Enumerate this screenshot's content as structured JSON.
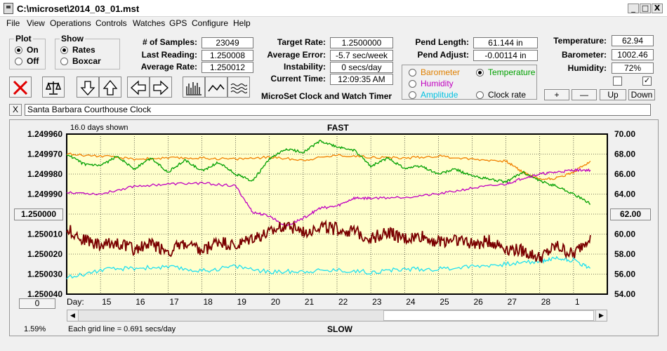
{
  "window": {
    "title": "C:\\microset\\2014_03_01.mst",
    "min": "_",
    "max": "□",
    "close": "X"
  },
  "menu": [
    "File",
    "View",
    "Operations",
    "Controls",
    "Watches",
    "GPS",
    "Configure",
    "Help"
  ],
  "plot_group": {
    "title": "Plot",
    "options": [
      "On",
      "Off"
    ],
    "selected": 0
  },
  "show_group": {
    "title": "Show",
    "options": [
      "Rates",
      "Boxcar"
    ],
    "selected": 0
  },
  "stats": [
    {
      "label": "# of Samples:",
      "value": "23049"
    },
    {
      "label": "Last Reading:",
      "value": "1.250008"
    },
    {
      "label": "Average Rate:",
      "value": "1.250012"
    }
  ],
  "rates": [
    {
      "label": "Target Rate:",
      "value": "1.2500000"
    },
    {
      "label": "Average Error:",
      "value": "-5.7 sec/week"
    },
    {
      "label": "Instability:",
      "value": "0 secs/day"
    },
    {
      "label": "Current Time:",
      "value": "12:09:35 AM"
    }
  ],
  "app_caption": "MicroSet Clock and Watch Timer",
  "pendulum": [
    {
      "label": "Pend Length:",
      "value": "61.144 in"
    },
    {
      "label": "Pend Adjust:",
      "value": "-0.00114 in"
    }
  ],
  "env": [
    {
      "label": "Temperature:",
      "value": "62.94"
    },
    {
      "label": "Barometer:",
      "value": "1002.46"
    },
    {
      "label": "Humidity:",
      "value": "72%"
    }
  ],
  "aux_options": [
    {
      "label": "Barometer",
      "color": "#e08000",
      "selected": false
    },
    {
      "label": "Temperature",
      "color": "#00a000",
      "selected": true
    },
    {
      "label": "Humidity",
      "color": "#c000c0",
      "selected": false
    },
    {
      "label": "Amplitude",
      "color": "#00c0e0",
      "selected": false
    },
    {
      "label": "Clock rate",
      "color": "#000000",
      "selected": false
    }
  ],
  "aux_buttons": [
    "+",
    "—",
    "Up",
    "Down"
  ],
  "checkboxes": [
    false,
    true
  ],
  "clock_name": "Santa Barbara Courthouse Clock",
  "clear_button": "X",
  "plot": {
    "days_shown": "16.0 days shown",
    "top_label": "FAST",
    "bottom_label": "SLOW",
    "grid_note": "Each grid line = 0.691 secs/day",
    "percent": "1.59%",
    "day_prefix": "Day:",
    "left_center_button": "1.250000",
    "right_center_button": "62.00",
    "bottom_left_button": "0"
  },
  "chart_data": {
    "type": "line",
    "x_tick_labels": [
      "15",
      "16",
      "17",
      "18",
      "19",
      "20",
      "21",
      "22",
      "23",
      "24",
      "25",
      "26",
      "27",
      "28",
      "1"
    ],
    "x_range_days": [
      0,
      16
    ],
    "y_left_labels": [
      "1.249960",
      "1.249970",
      "1.249980",
      "1.249990",
      "1.250000",
      "1.250010",
      "1.250020",
      "1.250030",
      "1.250040"
    ],
    "y_left_range": [
      1.24996,
      1.25004
    ],
    "y_right_labels": [
      "70.00",
      "68.00",
      "66.00",
      "64.00",
      "62.00",
      "60.00",
      "58.00",
      "56.00",
      "54.00"
    ],
    "y_right_range": [
      54,
      70
    ],
    "grid": true,
    "series": [
      {
        "name": "Barometer",
        "color": "#f08000",
        "axis": "right",
        "x": [
          0,
          1,
          2,
          3,
          4,
          5,
          6,
          7,
          8,
          9,
          10,
          11,
          12,
          13,
          13.5,
          14,
          14.5,
          15,
          15.5
        ],
        "y": [
          68.0,
          67.8,
          67.5,
          67.6,
          67.6,
          67.5,
          67.7,
          67.4,
          67.9,
          67.7,
          67.6,
          67.8,
          67.5,
          67.3,
          66.2,
          65.5,
          65.6,
          66.2,
          67.3
        ]
      },
      {
        "name": "Temperature",
        "color": "#00a000",
        "axis": "right",
        "x": [
          0,
          0.5,
          1,
          1.5,
          2,
          2.5,
          3,
          3.5,
          4,
          4.5,
          5,
          5.5,
          6,
          6.5,
          7,
          7.5,
          8,
          8.5,
          9,
          9.5,
          10,
          10.5,
          11,
          11.5,
          12,
          12.5,
          13,
          13.5,
          14,
          14.5,
          15,
          15.5
        ],
        "y": [
          68.0,
          67.0,
          66.8,
          67.8,
          66.5,
          67.6,
          66.2,
          67.4,
          66.3,
          67.2,
          66.0,
          65.3,
          67.5,
          68.5,
          68.2,
          69.3,
          68.7,
          68.4,
          66.8,
          67.6,
          66.6,
          66.8,
          66.0,
          66.5,
          65.8,
          65.5,
          65.2,
          66.2,
          65.3,
          64.8,
          64.0,
          63.0
        ]
      },
      {
        "name": "Humidity",
        "color": "#c000c0",
        "axis": "right",
        "x": [
          0,
          1,
          2,
          3,
          4,
          5,
          5.5,
          6,
          6.5,
          7,
          7.5,
          8,
          8.5,
          9,
          10,
          11,
          12,
          13,
          13.5,
          14,
          14.5,
          15,
          15.5
        ],
        "y": [
          64.2,
          64.0,
          64.8,
          65.0,
          65.1,
          64.8,
          62.2,
          61.8,
          60.8,
          61.6,
          62.6,
          62.8,
          63.6,
          63.6,
          63.7,
          64.0,
          64.6,
          65.0,
          65.6,
          66.0,
          66.2,
          66.4,
          66.4
        ]
      },
      {
        "name": "Amplitude",
        "color": "#20e0f0",
        "axis": "right",
        "x": [
          0,
          1,
          2,
          3,
          4,
          5,
          6,
          7,
          8,
          9,
          10,
          11,
          12,
          13,
          14,
          14.5,
          15,
          15.5
        ],
        "y": [
          55.6,
          56.4,
          56.6,
          56.7,
          56.3,
          56.8,
          56.2,
          56.3,
          56.4,
          56.2,
          56.5,
          56.5,
          56.8,
          57.0,
          57.3,
          57.6,
          57.4,
          56.6
        ]
      },
      {
        "name": "Clock rate",
        "color": "#7a0000",
        "axis": "right",
        "x": [
          0,
          0.5,
          1,
          1.5,
          2,
          2.5,
          3,
          3.5,
          4,
          4.5,
          5,
          5.5,
          6,
          6.5,
          7,
          7.5,
          8,
          8.5,
          9,
          9.5,
          10,
          10.5,
          11,
          11.5,
          12,
          12.5,
          13,
          13.5,
          14,
          14.5,
          15,
          15.5
        ],
        "y": [
          60.5,
          59.5,
          58.8,
          59.2,
          58.5,
          59.0,
          58.3,
          59.0,
          58.2,
          59.3,
          58.7,
          59.6,
          60.0,
          61.0,
          60.2,
          60.8,
          60.5,
          60.2,
          59.6,
          60.2,
          59.5,
          59.8,
          59.2,
          59.6,
          59.0,
          59.3,
          58.6,
          58.3,
          57.6,
          58.8,
          57.9,
          59.9
        ]
      }
    ]
  }
}
